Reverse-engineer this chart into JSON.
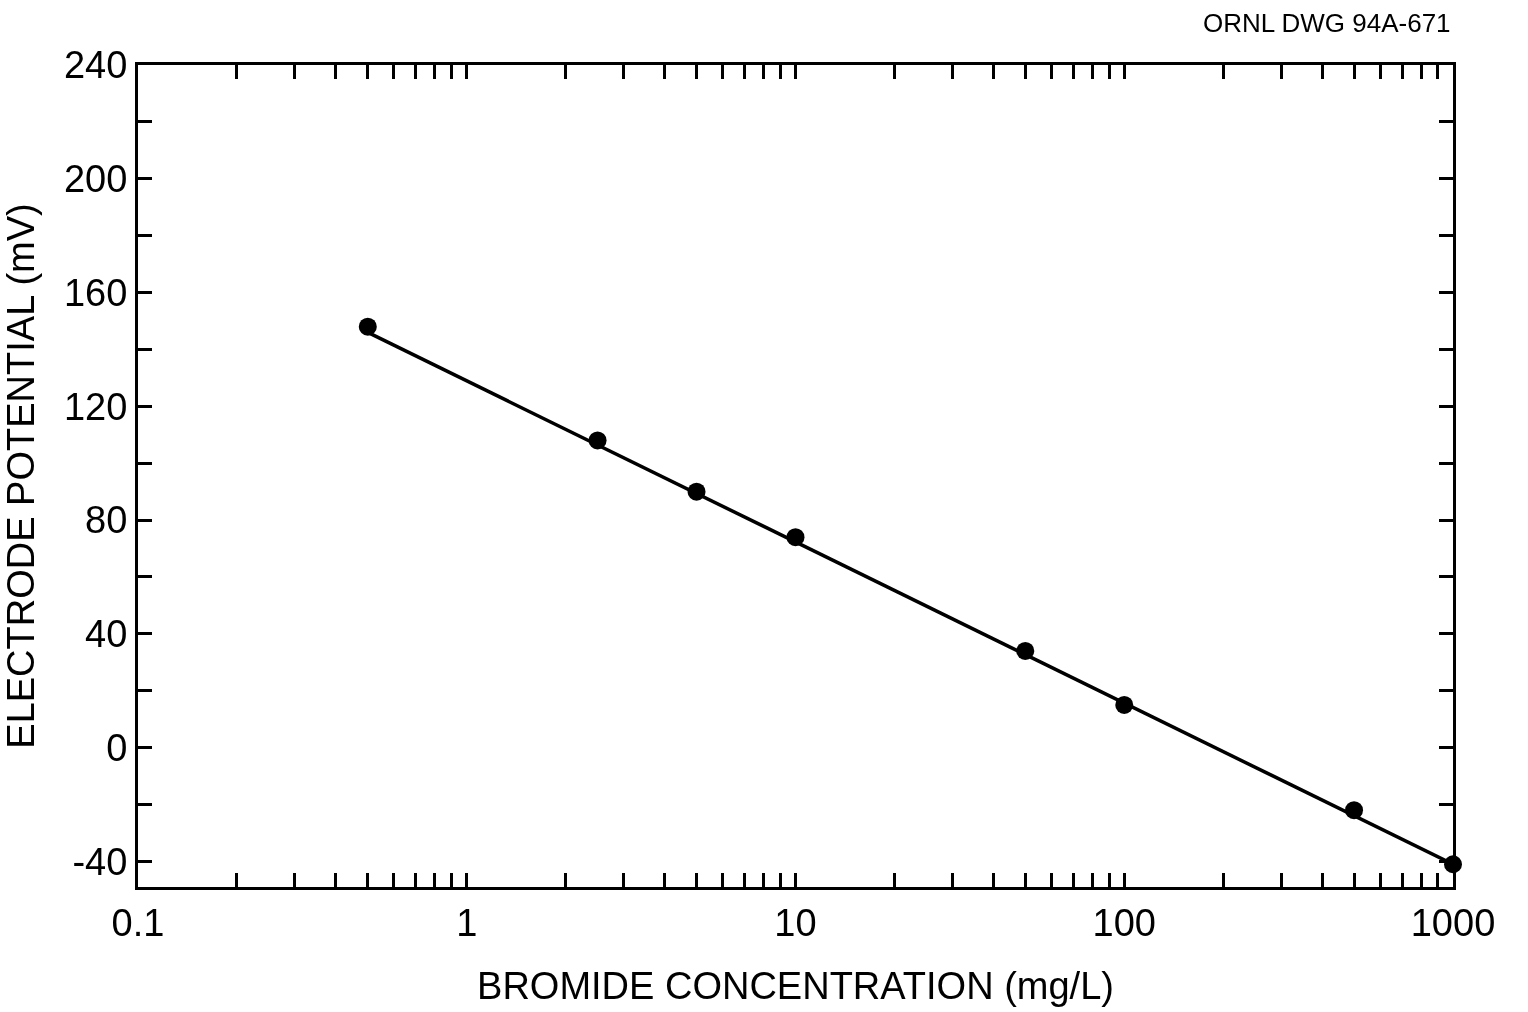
{
  "chart_data": {
    "type": "scatter",
    "xlabel": "BROMIDE CONCENTRATION (mg/L)",
    "ylabel": "ELECTRODE POTENTIAL (mV)",
    "annotations": [
      "ORNL DWG 94A-671"
    ],
    "log": "x",
    "marker": "circle",
    "xlim": [
      0.1,
      1000
    ],
    "ylim": [
      -49,
      240
    ],
    "xticks": [
      0.1,
      {
        "value": 0.2,
        "label": null
      },
      {
        "value": 0.3,
        "label": null
      },
      {
        "value": 0.4,
        "label": null
      },
      {
        "value": 0.5,
        "label": null
      },
      {
        "value": 0.6,
        "label": null
      },
      {
        "value": 0.7,
        "label": null
      },
      {
        "value": 0.8,
        "label": null
      },
      {
        "value": 0.9,
        "label": null
      },
      1,
      {
        "value": 2,
        "label": null
      },
      {
        "value": 3,
        "label": null
      },
      {
        "value": 4,
        "label": null
      },
      {
        "value": 5,
        "label": null
      },
      {
        "value": 6,
        "label": null
      },
      {
        "value": 7,
        "label": null
      },
      {
        "value": 8,
        "label": null
      },
      {
        "value": 9,
        "label": null
      },
      10,
      {
        "value": 20,
        "label": null
      },
      {
        "value": 30,
        "label": null
      },
      {
        "value": 40,
        "label": null
      },
      {
        "value": 50,
        "label": null
      },
      {
        "value": 60,
        "label": null
      },
      {
        "value": 70,
        "label": null
      },
      {
        "value": 80,
        "label": null
      },
      {
        "value": 90,
        "label": null
      },
      100,
      {
        "value": 200,
        "label": null
      },
      {
        "value": 300,
        "label": null
      },
      {
        "value": 400,
        "label": null
      },
      {
        "value": 500,
        "label": null
      },
      {
        "value": 600,
        "label": null
      },
      {
        "value": 700,
        "label": null
      },
      {
        "value": 800,
        "label": null
      },
      {
        "value": 900,
        "label": null
      },
      1000
    ],
    "yticks": [
      -40,
      {
        "value": -20,
        "label": null
      },
      0,
      {
        "value": 20,
        "label": null
      },
      40,
      {
        "value": 60,
        "label": null
      },
      80,
      {
        "value": 100,
        "label": null
      },
      120,
      {
        "value": 140,
        "label": null
      },
      160,
      {
        "value": 180,
        "label": null
      },
      200,
      {
        "value": 220,
        "label": null
      },
      240
    ],
    "series": [
      {
        "color": "#000000",
        "x": [
          0.5,
          2.5,
          5,
          10,
          50,
          100,
          500,
          1000
        ],
        "values": [
          148,
          108,
          90,
          74,
          34,
          15,
          -22,
          -41
        ]
      },
      {
        "type": "line",
        "color": "#000000",
        "marker": "none",
        "x": [
          0.5,
          1000
        ],
        "values": [
          146,
          -41
        ]
      }
    ]
  }
}
